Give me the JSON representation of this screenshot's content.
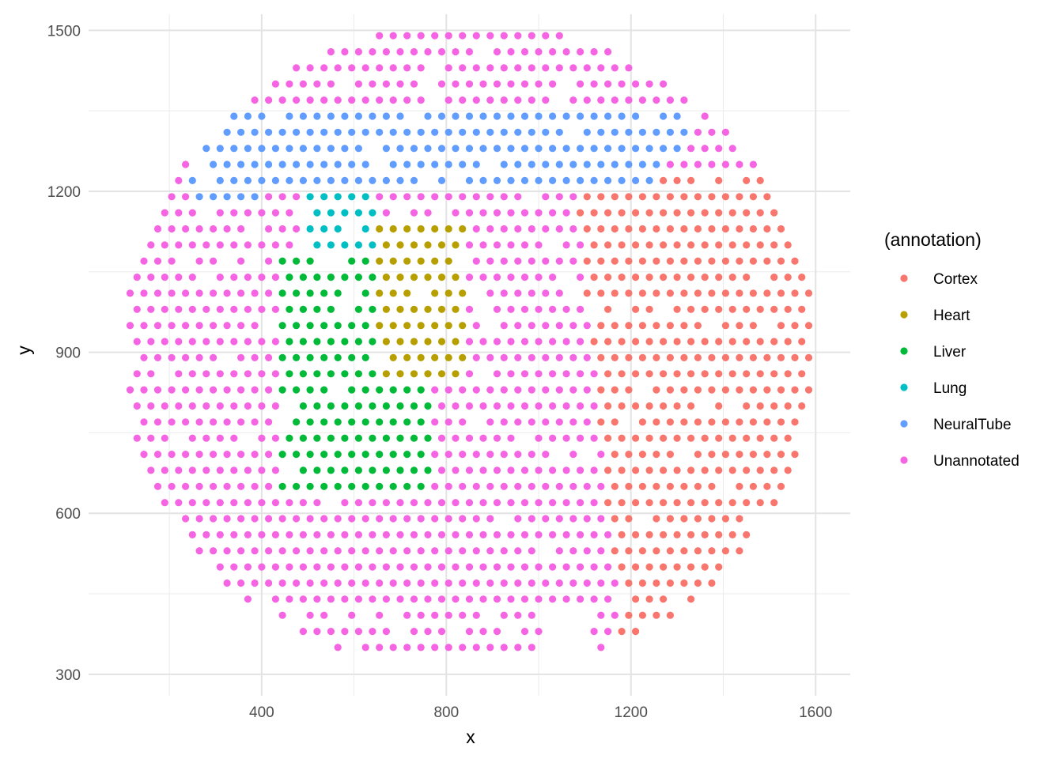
{
  "chart_data": {
    "type": "scatter",
    "title": "",
    "xlabel": "x",
    "ylabel": "y",
    "xlim": [
      25,
      1675
    ],
    "ylim": [
      260,
      1530
    ],
    "x_ticks": [
      400,
      800,
      1200,
      1600
    ],
    "y_ticks": [
      300,
      600,
      900,
      1200,
      1500
    ],
    "grid": true,
    "legend": {
      "title": "(annotation)",
      "position": "right"
    },
    "series": [
      {
        "name": "Cortex",
        "color": "#F8766D"
      },
      {
        "name": "Heart",
        "color": "#B79F00"
      },
      {
        "name": "Liver",
        "color": "#00BA38"
      },
      {
        "name": "Lung",
        "color": "#00BFC4"
      },
      {
        "name": "NeuralTube",
        "color": "#619CFF"
      },
      {
        "name": "Unannotated",
        "color": "#F564E3"
      }
    ],
    "spot_grid": {
      "x_spacing": 30,
      "y_spacing": 30,
      "center": [
        850,
        905
      ],
      "radius_x": 750,
      "radius_y": 610
    }
  }
}
